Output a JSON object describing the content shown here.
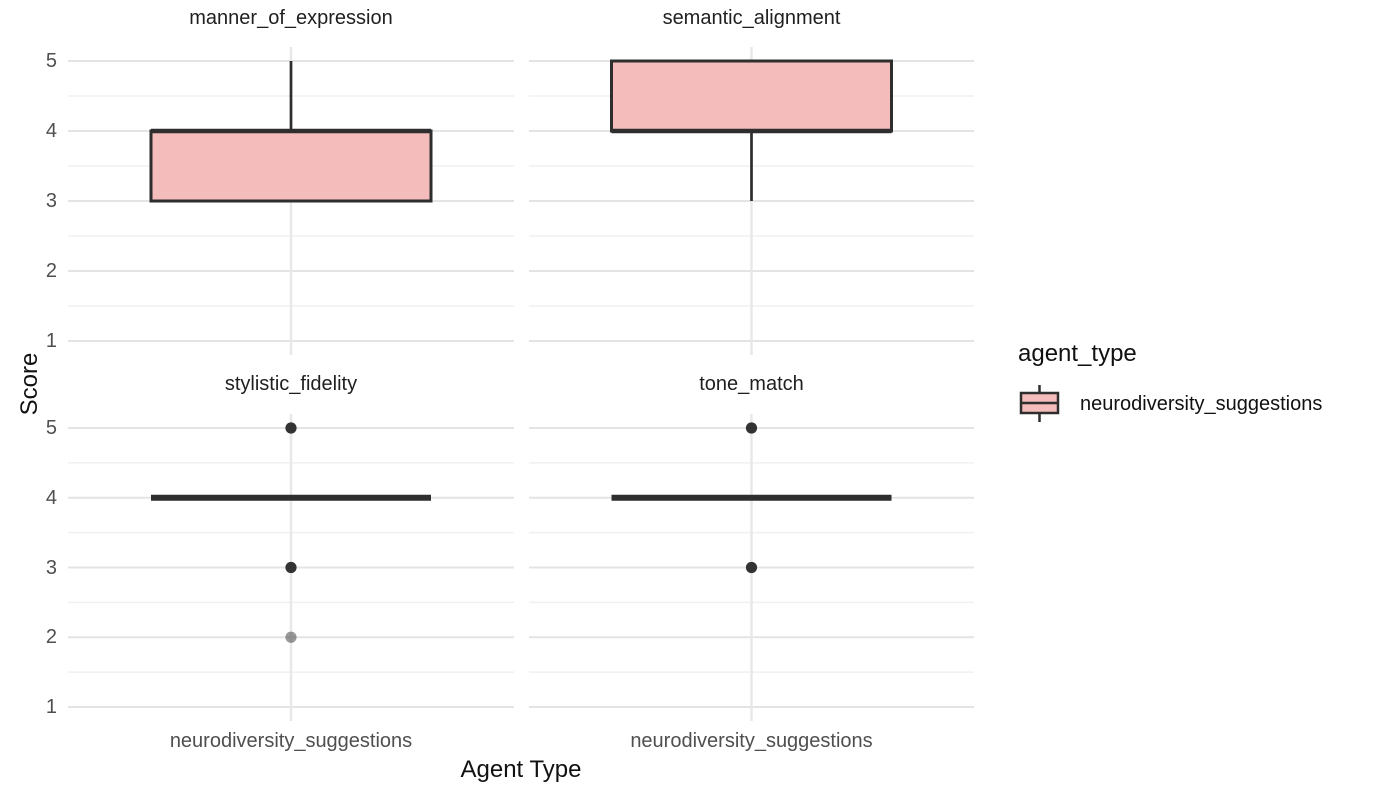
{
  "chart_data": {
    "type": "boxplot",
    "xlabel": "Agent Type",
    "ylabel": "Score",
    "x_category": "neurodiversity_suggestions",
    "y_ticks": [
      1,
      2,
      3,
      4,
      5
    ],
    "ylim": [
      1,
      5
    ],
    "grid": true,
    "legend": {
      "title": "agent_type",
      "position": "right",
      "entries": [
        {
          "label": "neurodiversity_suggestions"
        }
      ]
    },
    "facets": [
      {
        "title": "manner_of_expression",
        "row": 0,
        "col": 0,
        "box": {
          "whisker_low": 3,
          "q1": 3,
          "median": 4,
          "q3": 4,
          "whisker_high": 5
        },
        "outliers": []
      },
      {
        "title": "semantic_alignment",
        "row": 0,
        "col": 1,
        "box": {
          "whisker_low": 3,
          "q1": 4,
          "median": 4,
          "q3": 5,
          "whisker_high": 5
        },
        "outliers": []
      },
      {
        "title": "stylistic_fidelity",
        "row": 1,
        "col": 0,
        "box": {
          "whisker_low": 4,
          "q1": 4,
          "median": 4,
          "q3": 4,
          "whisker_high": 4
        },
        "outliers": [
          {
            "value": 5,
            "faded": false
          },
          {
            "value": 3,
            "faded": false
          },
          {
            "value": 2,
            "faded": true
          }
        ]
      },
      {
        "title": "tone_match",
        "row": 1,
        "col": 1,
        "box": {
          "whisker_low": 4,
          "q1": 4,
          "median": 4,
          "q3": 4,
          "whisker_high": 4
        },
        "outliers": [
          {
            "value": 5,
            "faded": false
          },
          {
            "value": 3,
            "faded": false
          }
        ]
      }
    ],
    "colors": {
      "box_fill": "#f4bcba",
      "box_stroke": "#2e2e2e",
      "outlier": "#333333",
      "outlier_faded_opacity": 0.5,
      "grid_major": "#e4e4e4",
      "grid_minor": "#f0f0f0",
      "grid_vertical": "#e8e8e8",
      "tick_text": "#4f4f4f",
      "title_text": "#1f1f1f",
      "background": "#ffffff"
    }
  }
}
